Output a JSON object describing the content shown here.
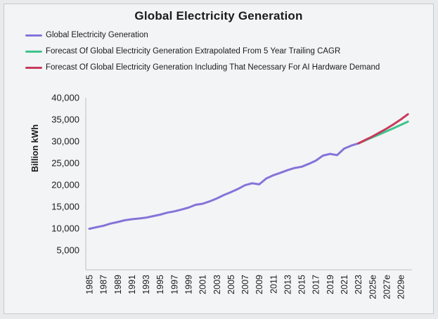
{
  "title": "Global Electricity Generation",
  "y_axis_label": "Billion kWh",
  "colors": {
    "background": "#e9eaec",
    "panel": "#f3f4f6",
    "border": "#c6c8cc",
    "axis": "#c9cbce",
    "text": "#1b1b1f",
    "actual_line": "#8673d8",
    "cagr_forecast_line": "#3ec48c",
    "ai_forecast_line": "#c83a5b"
  },
  "chart_data": {
    "type": "line",
    "title": "Global Electricity Generation",
    "xlabel": "",
    "ylabel": "Billion kWh",
    "ylim": [
      0,
      41000
    ],
    "grid": false,
    "legend_position": "top-left",
    "y_ticks": [
      {
        "value": 40000,
        "label": "40,000"
      },
      {
        "value": 35000,
        "label": "35,000"
      },
      {
        "value": 30000,
        "label": "30,000"
      },
      {
        "value": 25000,
        "label": "25,000"
      },
      {
        "value": 20000,
        "label": "20,000"
      },
      {
        "value": 15000,
        "label": "15,000"
      },
      {
        "value": 10000,
        "label": "10,000"
      },
      {
        "value": 5000,
        "label": "5,000"
      }
    ],
    "x_ticks": [
      {
        "year": 1985,
        "label": "1985"
      },
      {
        "year": 1987,
        "label": "1987"
      },
      {
        "year": 1989,
        "label": "1989"
      },
      {
        "year": 1991,
        "label": "1991"
      },
      {
        "year": 1993,
        "label": "1993"
      },
      {
        "year": 1995,
        "label": "1995"
      },
      {
        "year": 1997,
        "label": "1997"
      },
      {
        "year": 1999,
        "label": "1999"
      },
      {
        "year": 2001,
        "label": "2001"
      },
      {
        "year": 2003,
        "label": "2003"
      },
      {
        "year": 2005,
        "label": "2005"
      },
      {
        "year": 2007,
        "label": "2007"
      },
      {
        "year": 2009,
        "label": "2009"
      },
      {
        "year": 2011,
        "label": "2011"
      },
      {
        "year": 2013,
        "label": "2013"
      },
      {
        "year": 2015,
        "label": "2015"
      },
      {
        "year": 2017,
        "label": "2017"
      },
      {
        "year": 2019,
        "label": "2019"
      },
      {
        "year": 2021,
        "label": "2021"
      },
      {
        "year": 2023,
        "label": "2023"
      },
      {
        "year": 2025,
        "label": "2025e"
      },
      {
        "year": 2027,
        "label": "2027e"
      },
      {
        "year": 2029,
        "label": "2029e"
      }
    ],
    "x_range": [
      1985,
      2030
    ],
    "series": [
      {
        "name": "Global Electricity Generation",
        "color": "#8673d8",
        "start_year": 1985,
        "values": [
          9900,
          10250,
          10600,
          11100,
          11450,
          11850,
          12100,
          12250,
          12450,
          12800,
          13150,
          13600,
          13900,
          14300,
          14750,
          15400,
          15650,
          16200,
          16850,
          17650,
          18300,
          19050,
          19900,
          20350,
          20100,
          21450,
          22200,
          22750,
          23350,
          23850,
          24150,
          24800,
          25550,
          26700,
          27100,
          26800,
          28300,
          29000,
          29500
        ]
      },
      {
        "name": "Forecast Of Global Electricity Generation Extrapolated From 5 Year Trailing CAGR",
        "color": "#3ec48c",
        "start_year": 2023,
        "values": [
          29500,
          30200,
          30900,
          31600,
          32300,
          33000,
          33750,
          34500
        ]
      },
      {
        "name": "Forecast Of Global Electricity Generation Including That Necessary For AI Hardware Demand",
        "color": "#c83a5b",
        "start_year": 2023,
        "values": [
          29500,
          30300,
          31100,
          32000,
          32900,
          33900,
          35000,
          36200
        ]
      }
    ]
  }
}
